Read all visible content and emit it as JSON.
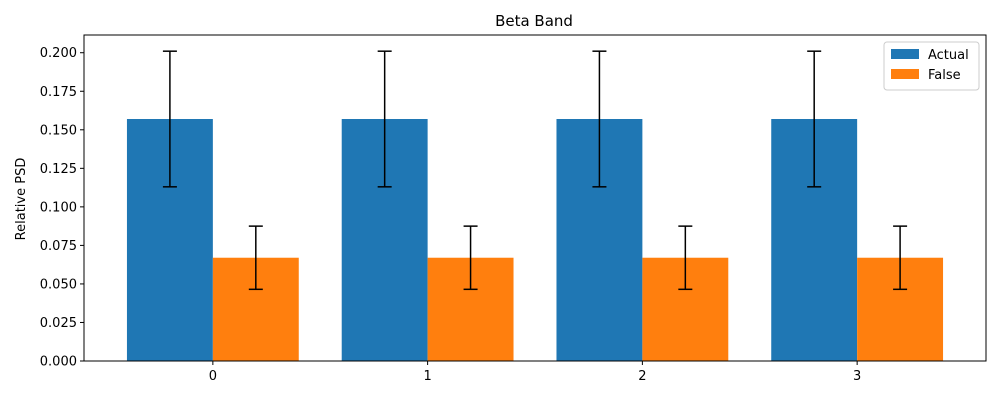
{
  "chart_data": {
    "type": "bar",
    "title": "Beta Band",
    "xlabel": "",
    "ylabel": "Relative PSD",
    "categories": [
      "0",
      "1",
      "2",
      "3"
    ],
    "ylim": [
      0,
      0.2115
    ],
    "yticks": [
      "0.000",
      "0.025",
      "0.050",
      "0.075",
      "0.100",
      "0.125",
      "0.150",
      "0.175",
      "0.200"
    ],
    "legend_position": "top-right",
    "grid": false,
    "series": [
      {
        "name": "Actual",
        "color": "#1f77b4",
        "values": [
          0.157,
          0.157,
          0.157,
          0.157
        ],
        "error": [
          0.044,
          0.044,
          0.044,
          0.044
        ]
      },
      {
        "name": "False",
        "color": "#ff7f0e",
        "values": [
          0.067,
          0.067,
          0.067,
          0.067
        ],
        "error": [
          0.0205,
          0.0205,
          0.0205,
          0.0205
        ]
      }
    ]
  }
}
